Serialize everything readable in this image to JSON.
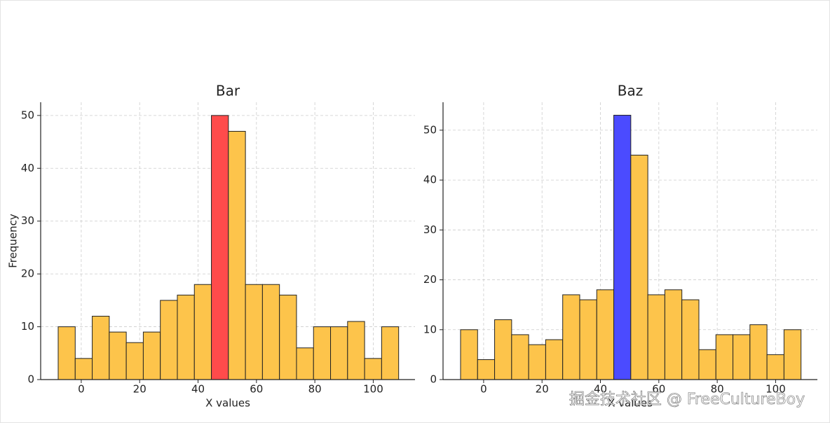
{
  "chart_data": [
    {
      "type": "histogram",
      "title": "Bar",
      "xlabel": "X values",
      "ylabel": "Frequency",
      "bins": [
        -7.9,
        -2.07,
        3.76,
        9.59,
        15.42,
        21.25,
        27.08,
        32.91,
        38.74,
        44.57,
        50.4,
        56.23,
        62.06,
        67.89,
        73.72,
        79.55,
        85.38,
        91.21,
        97.04,
        102.87,
        108.7
      ],
      "values": [
        10,
        4,
        12,
        9,
        7,
        9,
        15,
        16,
        18,
        50,
        47,
        18,
        18,
        16,
        6,
        10,
        10,
        11,
        4,
        10
      ],
      "colors": [
        "#fdc44b",
        "#fdc44b",
        "#fdc44b",
        "#fdc44b",
        "#fdc44b",
        "#fdc44b",
        "#fdc44b",
        "#fdc44b",
        "#fdc44b",
        "#ff4b4b",
        "#fdc44b",
        "#fdc44b",
        "#fdc44b",
        "#fdc44b",
        "#fdc44b",
        "#fdc44b",
        "#fdc44b",
        "#fdc44b",
        "#fdc44b",
        "#fdc44b"
      ],
      "xlim": [
        -13.9,
        114.3
      ],
      "xticks": [
        0,
        20,
        40,
        60,
        80,
        100
      ],
      "ylim": [
        0,
        52.5
      ],
      "yticks": [
        0,
        10,
        20,
        30,
        40,
        50
      ],
      "grid": true
    },
    {
      "type": "histogram",
      "title": "Baz",
      "xlabel": "X values",
      "bins": [
        -7.9,
        -2.07,
        3.76,
        9.59,
        15.42,
        21.25,
        27.08,
        32.91,
        38.74,
        44.57,
        50.4,
        56.23,
        62.06,
        67.89,
        73.72,
        79.55,
        85.38,
        91.21,
        97.04,
        102.87,
        108.7
      ],
      "values": [
        10,
        4,
        12,
        9,
        7,
        8,
        17,
        16,
        18,
        53,
        45,
        17,
        18,
        16,
        6,
        9,
        9,
        11,
        5,
        10
      ],
      "colors": [
        "#fdc44b",
        "#fdc44b",
        "#fdc44b",
        "#fdc44b",
        "#fdc44b",
        "#fdc44b",
        "#fdc44b",
        "#fdc44b",
        "#fdc44b",
        "#4b4bff",
        "#fdc44b",
        "#fdc44b",
        "#fdc44b",
        "#fdc44b",
        "#fdc44b",
        "#fdc44b",
        "#fdc44b",
        "#fdc44b",
        "#fdc44b",
        "#fdc44b"
      ],
      "xlim": [
        -13.9,
        114.3
      ],
      "xticks": [
        0,
        20,
        40,
        60,
        80,
        100
      ],
      "ylim": [
        0,
        55.6
      ],
      "yticks": [
        0,
        10,
        20,
        30,
        40,
        50
      ],
      "grid": true
    }
  ],
  "watermark": "掘金技术社区 @ FreeCultureBoy"
}
